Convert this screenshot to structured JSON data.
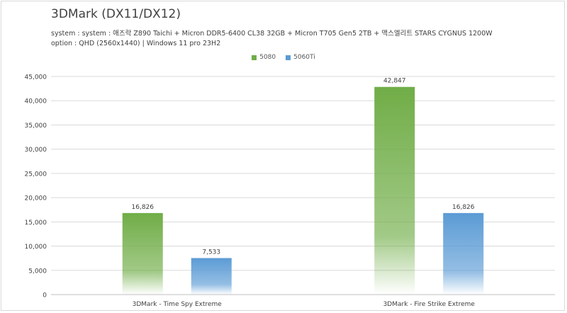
{
  "chart_data": {
    "type": "bar",
    "title": "3DMark (DX11/DX12)",
    "subtitle_lines": [
      "system : system : 애즈락 Z890 Taichi + Micron DDR5-6400 CL38 32GB + Micron T705 Gen5 2TB + 맥스엘리트 STARS CYGNUS 1200W",
      "option : QHD (2560x1440) | Windows 11 pro 23H2"
    ],
    "categories": [
      "3DMark - Time Spy Extreme",
      "3DMark - Fire Strike Extreme"
    ],
    "series": [
      {
        "name": "5080",
        "values": [
          16826,
          42847
        ],
        "labels": [
          "16,826",
          "42,847"
        ],
        "color": "#70ad47"
      },
      {
        "name": "5060Ti",
        "values": [
          7533,
          16826
        ],
        "labels": [
          "7,533",
          "16,826"
        ],
        "color": "#5b9bd5"
      }
    ],
    "ylim": [
      0,
      45000
    ],
    "yticks": [
      "0",
      "5,000",
      "10,000",
      "15,000",
      "20,000",
      "25,000",
      "30,000",
      "35,000",
      "40,000",
      "45,000"
    ],
    "grid": true,
    "legend_position": "top-center",
    "bar_style": "gradient-fade-to-white"
  }
}
